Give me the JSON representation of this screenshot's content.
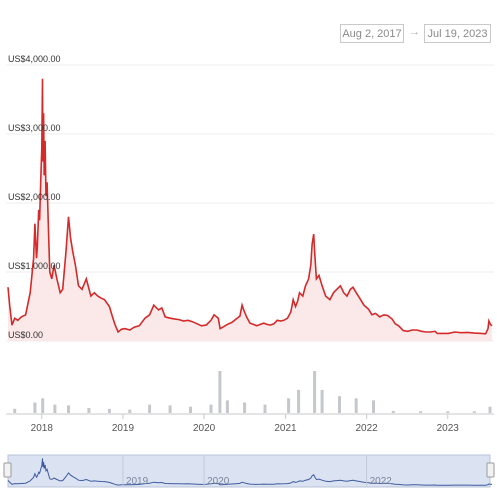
{
  "range": {
    "from": "Aug 2, 2017",
    "to": "Jul 19, 2023",
    "arrow": "→"
  },
  "colors": {
    "price_line": "#d42a2a",
    "price_fill": "#fbe9e9",
    "volume": "#c4c7cc",
    "navigator_line": "#3d5a9e",
    "navigator_mask": "#dbe3f3",
    "grid": "#ececec"
  },
  "chart_data": {
    "type": "line",
    "title": "",
    "y_ticks": [
      "US$0.00",
      "US$1,000.00",
      "US$2,000.00",
      "US$3,000.00",
      "US$4,000.00"
    ],
    "ylim": [
      0,
      4000
    ],
    "x_ticks": [
      "2018",
      "2019",
      "2020",
      "2021",
      "2022",
      "2023"
    ],
    "navigator_ticks": [
      "2019",
      "2020",
      "2022"
    ],
    "xlim": [
      "2017-08-02",
      "2023-07-19"
    ],
    "grid": true,
    "series": [
      {
        "role": "price",
        "points": [
          [
            "2017-08-02",
            780
          ],
          [
            "2017-08-10",
            500
          ],
          [
            "2017-08-20",
            230
          ],
          [
            "2017-09-01",
            330
          ],
          [
            "2017-09-15",
            300
          ],
          [
            "2017-10-01",
            350
          ],
          [
            "2017-10-20",
            380
          ],
          [
            "2017-11-10",
            700
          ],
          [
            "2017-11-25",
            1200
          ],
          [
            "2017-12-01",
            1700
          ],
          [
            "2017-12-08",
            1200
          ],
          [
            "2017-12-12",
            1350
          ],
          [
            "2017-12-18",
            1900
          ],
          [
            "2017-12-22",
            1750
          ],
          [
            "2017-12-28",
            2400
          ],
          [
            "2018-01-01",
            2800
          ],
          [
            "2018-01-04",
            3800
          ],
          [
            "2018-01-06",
            2600
          ],
          [
            "2018-01-09",
            3300
          ],
          [
            "2018-01-12",
            2400
          ],
          [
            "2018-01-16",
            2900
          ],
          [
            "2018-01-20",
            2100
          ],
          [
            "2018-01-25",
            2300
          ],
          [
            "2018-02-01",
            1500
          ],
          [
            "2018-02-06",
            1000
          ],
          [
            "2018-02-15",
            900
          ],
          [
            "2018-02-25",
            1100
          ],
          [
            "2018-03-10",
            900
          ],
          [
            "2018-03-25",
            700
          ],
          [
            "2018-04-05",
            750
          ],
          [
            "2018-04-20",
            1300
          ],
          [
            "2018-05-01",
            1800
          ],
          [
            "2018-05-10",
            1500
          ],
          [
            "2018-05-20",
            1300
          ],
          [
            "2018-06-01",
            1100
          ],
          [
            "2018-06-15",
            800
          ],
          [
            "2018-07-01",
            750
          ],
          [
            "2018-07-20",
            900
          ],
          [
            "2018-08-10",
            650
          ],
          [
            "2018-08-25",
            700
          ],
          [
            "2018-09-10",
            650
          ],
          [
            "2018-09-25",
            620
          ],
          [
            "2018-10-10",
            600
          ],
          [
            "2018-11-01",
            500
          ],
          [
            "2018-11-15",
            350
          ],
          [
            "2018-11-25",
            250
          ],
          [
            "2018-12-10",
            130
          ],
          [
            "2018-12-25",
            170
          ],
          [
            "2019-01-10",
            180
          ],
          [
            "2019-02-01",
            160
          ],
          [
            "2019-02-20",
            200
          ],
          [
            "2019-03-15",
            220
          ],
          [
            "2019-04-10",
            330
          ],
          [
            "2019-05-01",
            380
          ],
          [
            "2019-05-20",
            520
          ],
          [
            "2019-06-10",
            450
          ],
          [
            "2019-06-25",
            480
          ],
          [
            "2019-07-10",
            350
          ],
          [
            "2019-08-01",
            330
          ],
          [
            "2019-08-20",
            320
          ],
          [
            "2019-09-10",
            310
          ],
          [
            "2019-10-01",
            290
          ],
          [
            "2019-10-20",
            300
          ],
          [
            "2019-11-10",
            280
          ],
          [
            "2019-12-01",
            250
          ],
          [
            "2019-12-20",
            220
          ],
          [
            "2020-01-10",
            230
          ],
          [
            "2020-02-01",
            300
          ],
          [
            "2020-02-15",
            380
          ],
          [
            "2020-03-05",
            330
          ],
          [
            "2020-03-13",
            180
          ],
          [
            "2020-03-25",
            200
          ],
          [
            "2020-04-15",
            240
          ],
          [
            "2020-05-05",
            270
          ],
          [
            "2020-05-25",
            320
          ],
          [
            "2020-06-10",
            360
          ],
          [
            "2020-06-20",
            520
          ],
          [
            "2020-06-27",
            450
          ],
          [
            "2020-07-10",
            350
          ],
          [
            "2020-07-25",
            260
          ],
          [
            "2020-08-10",
            240
          ],
          [
            "2020-08-25",
            220
          ],
          [
            "2020-09-10",
            240
          ],
          [
            "2020-09-25",
            260
          ],
          [
            "2020-10-10",
            240
          ],
          [
            "2020-10-25",
            230
          ],
          [
            "2020-11-10",
            250
          ],
          [
            "2020-11-25",
            300
          ],
          [
            "2020-12-10",
            290
          ],
          [
            "2020-12-25",
            300
          ],
          [
            "2021-01-10",
            330
          ],
          [
            "2021-01-25",
            420
          ],
          [
            "2021-02-05",
            600
          ],
          [
            "2021-02-15",
            500
          ],
          [
            "2021-02-25",
            580
          ],
          [
            "2021-03-05",
            700
          ],
          [
            "2021-03-20",
            650
          ],
          [
            "2021-04-01",
            800
          ],
          [
            "2021-04-15",
            900
          ],
          [
            "2021-04-25",
            1100
          ],
          [
            "2021-05-01",
            1400
          ],
          [
            "2021-05-08",
            1550
          ],
          [
            "2021-05-12",
            1300
          ],
          [
            "2021-05-20",
            900
          ],
          [
            "2021-06-01",
            950
          ],
          [
            "2021-06-15",
            800
          ],
          [
            "2021-07-01",
            650
          ],
          [
            "2021-07-20",
            600
          ],
          [
            "2021-08-05",
            700
          ],
          [
            "2021-08-20",
            750
          ],
          [
            "2021-09-05",
            800
          ],
          [
            "2021-09-20",
            700
          ],
          [
            "2021-10-05",
            650
          ],
          [
            "2021-10-20",
            750
          ],
          [
            "2021-11-01",
            780
          ],
          [
            "2021-11-15",
            700
          ],
          [
            "2021-12-01",
            620
          ],
          [
            "2021-12-20",
            520
          ],
          [
            "2022-01-10",
            460
          ],
          [
            "2022-01-25",
            380
          ],
          [
            "2022-02-10",
            400
          ],
          [
            "2022-03-01",
            350
          ],
          [
            "2022-03-20",
            380
          ],
          [
            "2022-04-05",
            370
          ],
          [
            "2022-04-25",
            320
          ],
          [
            "2022-05-10",
            250
          ],
          [
            "2022-05-25",
            220
          ],
          [
            "2022-06-15",
            150
          ],
          [
            "2022-07-05",
            140
          ],
          [
            "2022-07-25",
            160
          ],
          [
            "2022-08-15",
            160
          ],
          [
            "2022-09-05",
            140
          ],
          [
            "2022-09-25",
            130
          ],
          [
            "2022-10-15",
            130
          ],
          [
            "2022-11-05",
            140
          ],
          [
            "2022-11-15",
            110
          ],
          [
            "2022-12-05",
            110
          ],
          [
            "2023-01-05",
            110
          ],
          [
            "2023-02-01",
            130
          ],
          [
            "2023-03-01",
            120
          ],
          [
            "2023-04-01",
            125
          ],
          [
            "2023-05-01",
            115
          ],
          [
            "2023-06-01",
            110
          ],
          [
            "2023-06-20",
            105
          ],
          [
            "2023-07-01",
            180
          ],
          [
            "2023-07-05",
            290
          ],
          [
            "2023-07-12",
            240
          ],
          [
            "2023-07-19",
            220
          ]
        ]
      },
      {
        "role": "volume",
        "points": [
          [
            "2017-09-01",
            0.1
          ],
          [
            "2017-12-01",
            0.25
          ],
          [
            "2018-01-05",
            0.35
          ],
          [
            "2018-03-01",
            0.2
          ],
          [
            "2018-05-01",
            0.18
          ],
          [
            "2018-08-01",
            0.12
          ],
          [
            "2018-11-01",
            0.1
          ],
          [
            "2019-02-01",
            0.08
          ],
          [
            "2019-05-01",
            0.2
          ],
          [
            "2019-08-01",
            0.18
          ],
          [
            "2019-11-01",
            0.15
          ],
          [
            "2020-02-01",
            0.2
          ],
          [
            "2020-03-12",
            1.0
          ],
          [
            "2020-04-15",
            0.3
          ],
          [
            "2020-07-01",
            0.25
          ],
          [
            "2020-10-01",
            0.2
          ],
          [
            "2021-01-15",
            0.35
          ],
          [
            "2021-03-01",
            0.55
          ],
          [
            "2021-05-12",
            1.0
          ],
          [
            "2021-06-15",
            0.55
          ],
          [
            "2021-09-01",
            0.4
          ],
          [
            "2021-11-15",
            0.35
          ],
          [
            "2022-02-01",
            0.3
          ],
          [
            "2022-05-01",
            0.05
          ],
          [
            "2022-09-01",
            0.04
          ],
          [
            "2023-01-01",
            0.04
          ],
          [
            "2023-05-01",
            0.04
          ],
          [
            "2023-07-10",
            0.15
          ]
        ]
      }
    ]
  }
}
